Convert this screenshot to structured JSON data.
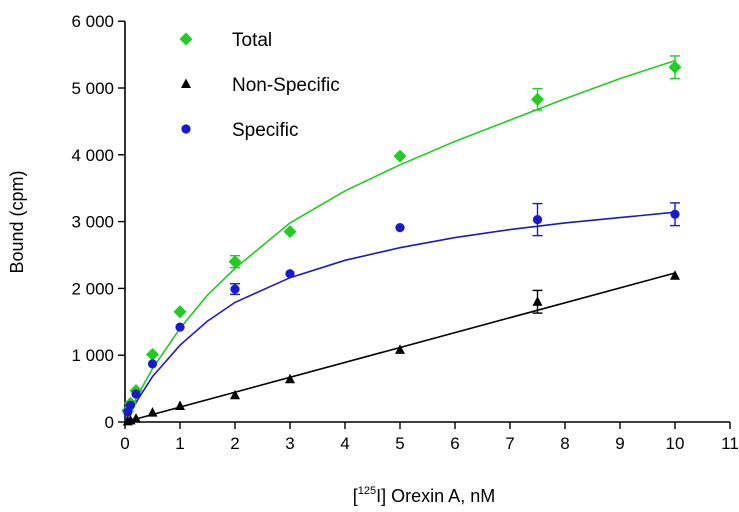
{
  "chart_data": {
    "type": "scatter",
    "xlabel_parts": {
      "pre": "[",
      "sup": "125",
      "post": "I] Orexin A, nM"
    },
    "ylabel": "Bound (cpm)",
    "xlim": [
      0,
      11
    ],
    "ylim": [
      0,
      6000
    ],
    "x_ticks": [
      0,
      1,
      2,
      3,
      4,
      5,
      6,
      7,
      8,
      9,
      10,
      11
    ],
    "x_tick_labels": [
      "0",
      "1",
      "2",
      "3",
      "4",
      "5",
      "6",
      "7",
      "8",
      "9",
      "10",
      "11"
    ],
    "y_ticks": [
      0,
      1000,
      2000,
      3000,
      4000,
      5000,
      6000
    ],
    "y_tick_labels": [
      "0",
      "1 000",
      "2 000",
      "3 000",
      "4 000",
      "5 000",
      "6 000"
    ],
    "legend_position": "top-left",
    "series": [
      {
        "name": "Total",
        "marker": "diamond",
        "color": "#22cc22",
        "x": [
          0.05,
          0.1,
          0.2,
          0.5,
          1,
          2,
          3,
          5,
          7.5,
          10
        ],
        "y": [
          170,
          280,
          470,
          1010,
          1650,
          2400,
          2850,
          3980,
          4830,
          5310
        ],
        "err": [
          0,
          0,
          0,
          0,
          0,
          90,
          0,
          0,
          160,
          170
        ],
        "fit_x": [
          0,
          0.1,
          0.25,
          0.5,
          1,
          1.5,
          2,
          3,
          4,
          5,
          6,
          7,
          8,
          9,
          10
        ],
        "fit_y": [
          0,
          180,
          430,
          800,
          1400,
          1900,
          2300,
          2980,
          3460,
          3850,
          4200,
          4520,
          4840,
          5140,
          5410
        ]
      },
      {
        "name": "Non-Specific",
        "marker": "triangle",
        "color": "#000000",
        "x": [
          0.05,
          0.1,
          0.2,
          0.5,
          1,
          2,
          3,
          5,
          7.5,
          10
        ],
        "y": [
          10,
          25,
          50,
          140,
          240,
          400,
          640,
          1080,
          1800,
          2190
        ],
        "err": [
          0,
          0,
          0,
          0,
          0,
          0,
          0,
          0,
          170,
          0
        ],
        "fit_x": [
          0,
          10
        ],
        "fit_y": [
          0,
          2230
        ]
      },
      {
        "name": "Specific",
        "marker": "circle",
        "color": "#1a1acc",
        "x": [
          0.05,
          0.1,
          0.2,
          0.5,
          1,
          2,
          3,
          5,
          7.5,
          10
        ],
        "y": [
          150,
          250,
          420,
          870,
          1420,
          1990,
          2220,
          2910,
          3030,
          3110
        ],
        "err": [
          0,
          0,
          0,
          0,
          0,
          80,
          0,
          0,
          240,
          170
        ],
        "fit_x": [
          0,
          0.1,
          0.25,
          0.5,
          1,
          1.5,
          2,
          3,
          4,
          5,
          6,
          7,
          8,
          9,
          10
        ],
        "fit_y": [
          0,
          150,
          360,
          680,
          1150,
          1510,
          1790,
          2160,
          2420,
          2610,
          2760,
          2880,
          2980,
          3060,
          3140
        ]
      }
    ]
  }
}
